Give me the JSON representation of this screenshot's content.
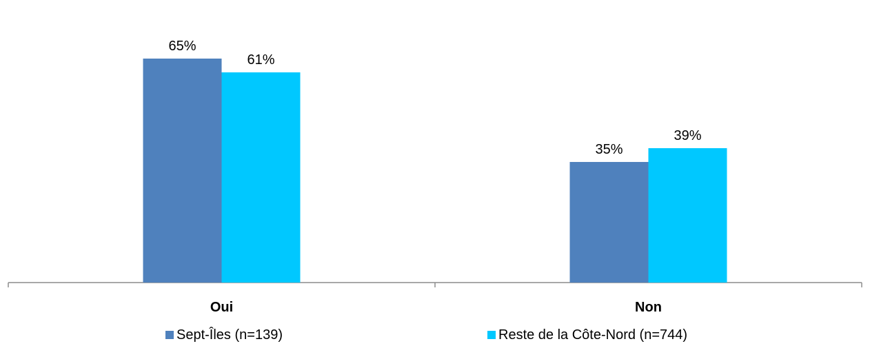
{
  "chart_data": {
    "type": "bar",
    "categories": [
      "Oui",
      "Non"
    ],
    "series": [
      {
        "name": "Sept-Îles (n=139)",
        "values": [
          65,
          35
        ],
        "labels": [
          "65%",
          "35%"
        ],
        "color": "#4F81BD"
      },
      {
        "name": "Reste de la Côte-Nord (n=744)",
        "values": [
          61,
          39
        ],
        "labels": [
          "61%",
          "39%"
        ],
        "color": "#00C8FF"
      }
    ],
    "ylim": [
      0,
      75
    ],
    "grid": false,
    "legend_position": "bottom"
  },
  "colors": {
    "axis": "#8C8C8C"
  }
}
